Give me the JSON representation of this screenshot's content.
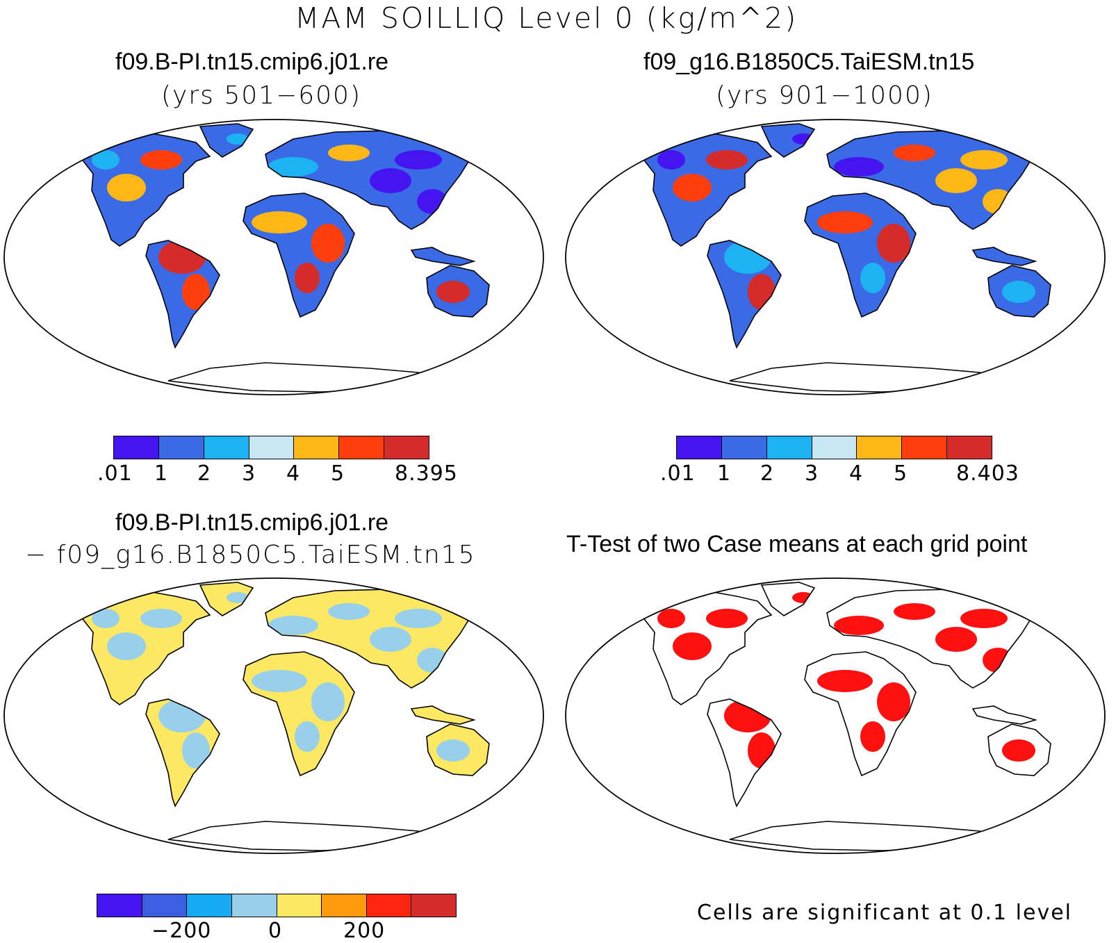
{
  "title": "MAM SOILLIQ Level 0 (kg/m^2)",
  "colors": {
    "seq": [
      "#4415f0",
      "#3a6ae6",
      "#1db3f2",
      "#c9e8f5",
      "#fdb717",
      "#fe3f0d",
      "#d52b29"
    ],
    "diff": [
      "#4415f0",
      "#3d5ee0",
      "#17aaf2",
      "#98d0ec",
      "#fde864",
      "#fe9a0c",
      "#fe2510",
      "#d52b29"
    ],
    "signif": "#ff1010",
    "ocean": "#ffffff"
  },
  "panels": [
    {
      "id": "case1",
      "title": "f09.B-PI.tn15.cmip6.j01.re",
      "subtitle": "(yrs 501−600)",
      "colorbar_labels": [
        ".01",
        "1",
        "2",
        "3",
        "4",
        "5",
        "8.395"
      ]
    },
    {
      "id": "case2",
      "title": "f09_g16.B1850C5.TaiESM.tn15",
      "subtitle": "(yrs 901−1000)",
      "colorbar_labels": [
        ".01",
        "1",
        "2",
        "3",
        "4",
        "5",
        "8.403"
      ]
    },
    {
      "id": "diff",
      "title": "f09.B-PI.tn15.cmip6.j01.re",
      "subtitle": "− f09_g16.B1850C5.TaiESM.tn15",
      "colorbar_labels": [
        "−200",
        "0",
        "200"
      ]
    },
    {
      "id": "ttest",
      "title": "T-Test of two Case means at each grid point",
      "note": "Cells are significant at 0.1 level"
    }
  ]
}
